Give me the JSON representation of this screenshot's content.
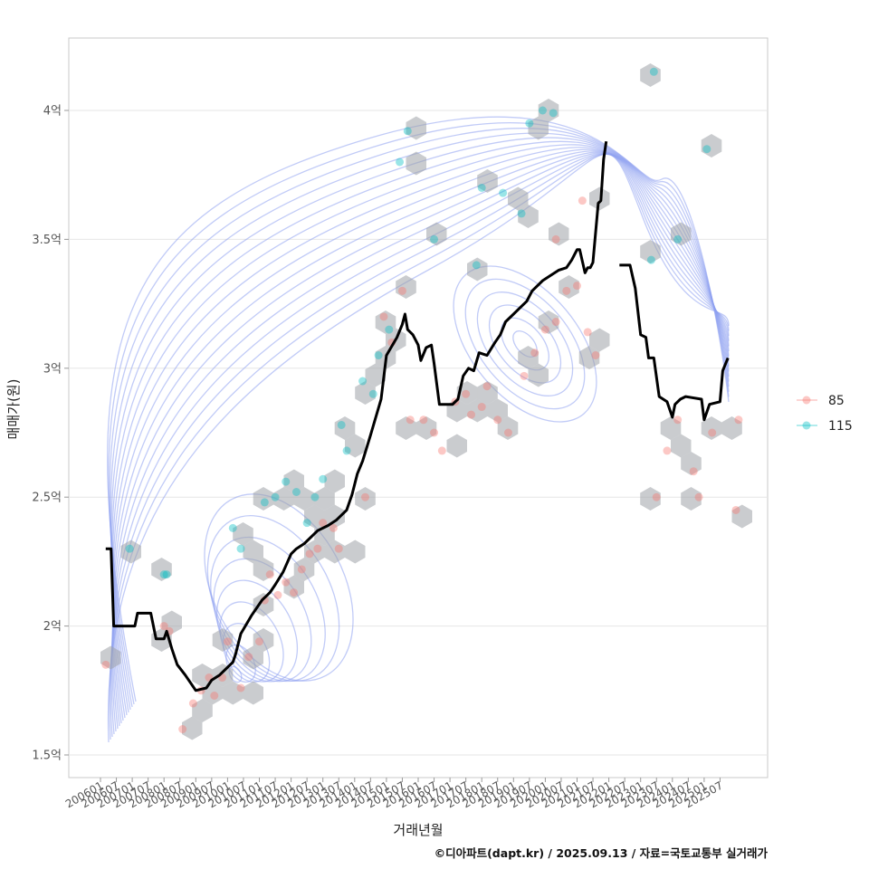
{
  "chart_data": {
    "type": "line",
    "xlabel": "거래년월",
    "ylabel": "매매가(원)",
    "ylim": [
      1.45,
      4.28
    ],
    "y_ticks": [
      {
        "value": 1.5,
        "label": "1.5억"
      },
      {
        "value": 2,
        "label": "2억"
      },
      {
        "value": 2.5,
        "label": "2.5억"
      },
      {
        "value": 3,
        "label": "3억"
      },
      {
        "value": 3.5,
        "label": "3.5억"
      },
      {
        "value": 4,
        "label": "4억"
      }
    ],
    "x_ticks": [
      "200601",
      "200607",
      "200701",
      "200707",
      "200801",
      "200807",
      "200901",
      "200907",
      "201001",
      "201007",
      "201101",
      "201107",
      "201201",
      "201207",
      "201301",
      "201307",
      "201401",
      "201407",
      "201501",
      "201507",
      "201601",
      "201607",
      "201701",
      "201707",
      "201801",
      "201807",
      "201901",
      "201907",
      "202001",
      "202007",
      "202101",
      "202107",
      "202201",
      "202207",
      "202301",
      "202307",
      "202401",
      "202407",
      "202501",
      "202507"
    ],
    "grid": true,
    "legend": {
      "position": "right",
      "entries": [
        {
          "label": "85",
          "color": "#F8766D"
        },
        {
          "label": "115",
          "color": "#00BFC4"
        }
      ]
    },
    "series": [
      {
        "name": "moving-average",
        "color": "#000000",
        "segments": [
          [
            [
              2,
              2.3
            ],
            [
              4,
              2.3
            ],
            [
              5,
              2.0
            ],
            [
              13,
              2.0
            ],
            [
              14,
              2.05
            ],
            [
              19,
              2.05
            ],
            [
              21,
              1.95
            ],
            [
              24,
              1.95
            ],
            [
              25,
              1.98
            ],
            [
              27,
              1.91
            ],
            [
              29,
              1.85
            ],
            [
              32,
              1.81
            ],
            [
              36,
              1.75
            ],
            [
              40,
              1.76
            ],
            [
              42,
              1.79
            ],
            [
              45,
              1.81
            ],
            [
              48,
              1.84
            ],
            [
              50,
              1.86
            ],
            [
              51,
              1.89
            ],
            [
              53,
              1.97
            ],
            [
              57,
              2.04
            ],
            [
              61,
              2.1
            ],
            [
              64,
              2.13
            ],
            [
              66,
              2.16
            ],
            [
              69,
              2.21
            ],
            [
              72,
              2.28
            ],
            [
              74,
              2.3
            ],
            [
              77,
              2.32
            ],
            [
              80,
              2.35
            ],
            [
              82,
              2.37
            ],
            [
              86,
              2.39
            ],
            [
              89,
              2.41
            ],
            [
              93,
              2.45
            ],
            [
              95,
              2.51
            ],
            [
              97,
              2.59
            ],
            [
              99,
              2.64
            ],
            [
              102,
              2.74
            ],
            [
              106,
              2.88
            ],
            [
              108,
              3.05
            ],
            [
              112,
              3.12
            ],
            [
              114,
              3.17
            ],
            [
              115,
              3.21
            ],
            [
              116,
              3.15
            ],
            [
              118,
              3.13
            ],
            [
              120,
              3.09
            ],
            [
              121,
              3.03
            ],
            [
              123,
              3.08
            ],
            [
              125,
              3.09
            ],
            [
              126,
              3.02
            ],
            [
              128,
              2.86
            ],
            [
              130,
              2.86
            ],
            [
              131,
              2.86
            ],
            [
              133,
              2.86
            ],
            [
              135,
              2.88
            ],
            [
              137,
              2.97
            ],
            [
              139,
              3.0
            ],
            [
              141,
              2.99
            ],
            [
              143,
              3.06
            ],
            [
              146,
              3.05
            ],
            [
              149,
              3.1
            ],
            [
              151,
              3.13
            ],
            [
              153,
              3.18
            ],
            [
              156,
              3.21
            ],
            [
              158,
              3.23
            ],
            [
              161,
              3.26
            ],
            [
              163,
              3.3
            ],
            [
              167,
              3.34
            ],
            [
              170,
              3.36
            ],
            [
              173,
              3.38
            ],
            [
              176,
              3.39
            ],
            [
              178,
              3.42
            ],
            [
              180,
              3.46
            ],
            [
              181,
              3.46
            ],
            [
              183,
              3.37
            ],
            [
              184,
              3.39
            ],
            [
              185,
              3.39
            ],
            [
              186,
              3.41
            ],
            [
              188,
              3.64
            ],
            [
              189,
              3.65
            ],
            [
              190,
              3.81
            ],
            [
              191,
              3.88
            ]
          ],
          [
            [
              196,
              3.4
            ],
            [
              200,
              3.4
            ],
            [
              202,
              3.31
            ],
            [
              204,
              3.13
            ],
            [
              206,
              3.12
            ],
            [
              207,
              3.04
            ],
            [
              209,
              3.04
            ],
            [
              211,
              2.89
            ],
            [
              214,
              2.87
            ],
            [
              216,
              2.81
            ],
            [
              217,
              2.86
            ],
            [
              219,
              2.88
            ],
            [
              221,
              2.89
            ],
            [
              227,
              2.88
            ],
            [
              228,
              2.8
            ],
            [
              230,
              2.86
            ],
            [
              234,
              2.87
            ],
            [
              235,
              2.99
            ],
            [
              237,
              3.04
            ]
          ]
        ]
      }
    ],
    "scatter": {
      "85": [
        [
          2,
          1.85
        ],
        [
          24,
          2.0
        ],
        [
          26,
          1.98
        ],
        [
          31,
          1.6
        ],
        [
          35,
          1.7
        ],
        [
          38,
          1.75
        ],
        [
          41,
          1.8
        ],
        [
          43,
          1.73
        ],
        [
          46,
          1.8
        ],
        [
          48,
          1.94
        ],
        [
          53,
          1.76
        ],
        [
          56,
          1.88
        ],
        [
          60,
          1.94
        ],
        [
          62,
          2.1
        ],
        [
          64,
          2.2
        ],
        [
          67,
          2.12
        ],
        [
          70,
          2.17
        ],
        [
          73,
          2.13
        ],
        [
          76,
          2.22
        ],
        [
          79,
          2.28
        ],
        [
          82,
          2.3
        ],
        [
          84,
          2.4
        ],
        [
          88,
          2.38
        ],
        [
          90,
          2.3
        ],
        [
          100,
          2.5
        ],
        [
          107,
          3.2
        ],
        [
          110,
          3.1
        ],
        [
          114,
          3.3
        ],
        [
          117,
          2.8
        ],
        [
          122,
          2.8
        ],
        [
          126,
          2.75
        ],
        [
          129,
          2.68
        ],
        [
          134,
          2.87
        ],
        [
          138,
          2.9
        ],
        [
          140,
          2.82
        ],
        [
          144,
          2.85
        ],
        [
          146,
          2.93
        ],
        [
          150,
          2.8
        ],
        [
          154,
          2.75
        ],
        [
          160,
          2.97
        ],
        [
          164,
          3.06
        ],
        [
          168,
          3.15
        ],
        [
          172,
          3.18
        ],
        [
          176,
          3.3
        ],
        [
          180,
          3.32
        ],
        [
          184,
          3.14
        ],
        [
          187,
          3.05
        ],
        [
          172,
          3.5
        ],
        [
          182,
          3.65
        ],
        [
          210,
          2.5
        ],
        [
          214,
          2.68
        ],
        [
          218,
          2.8
        ],
        [
          224,
          2.6
        ],
        [
          226,
          2.5
        ],
        [
          231,
          2.75
        ],
        [
          240,
          2.45
        ],
        [
          241,
          2.8
        ]
      ],
      "115": [
        [
          11,
          2.3
        ],
        [
          24,
          2.2
        ],
        [
          25,
          2.2
        ],
        [
          50,
          2.38
        ],
        [
          53,
          2.3
        ],
        [
          62,
          2.48
        ],
        [
          66,
          2.5
        ],
        [
          70,
          2.56
        ],
        [
          74,
          2.52
        ],
        [
          78,
          2.4
        ],
        [
          81,
          2.5
        ],
        [
          84,
          2.57
        ],
        [
          91,
          2.78
        ],
        [
          93,
          2.68
        ],
        [
          99,
          2.95
        ],
        [
          103,
          2.9
        ],
        [
          105,
          3.05
        ],
        [
          109,
          3.15
        ],
        [
          113,
          3.8
        ],
        [
          116,
          3.92
        ],
        [
          126,
          3.5
        ],
        [
          142,
          3.4
        ],
        [
          144,
          3.7
        ],
        [
          152,
          3.68
        ],
        [
          159,
          3.6
        ],
        [
          162,
          3.95
        ],
        [
          167,
          4.0
        ],
        [
          171,
          3.99
        ],
        [
          208,
          3.42
        ],
        [
          209,
          4.15
        ],
        [
          218,
          3.5
        ],
        [
          229,
          3.85
        ]
      ]
    }
  },
  "credit": "©디아파트(dapt.kr) / 2025.09.13 / 자료=국토교통부 실거래가"
}
